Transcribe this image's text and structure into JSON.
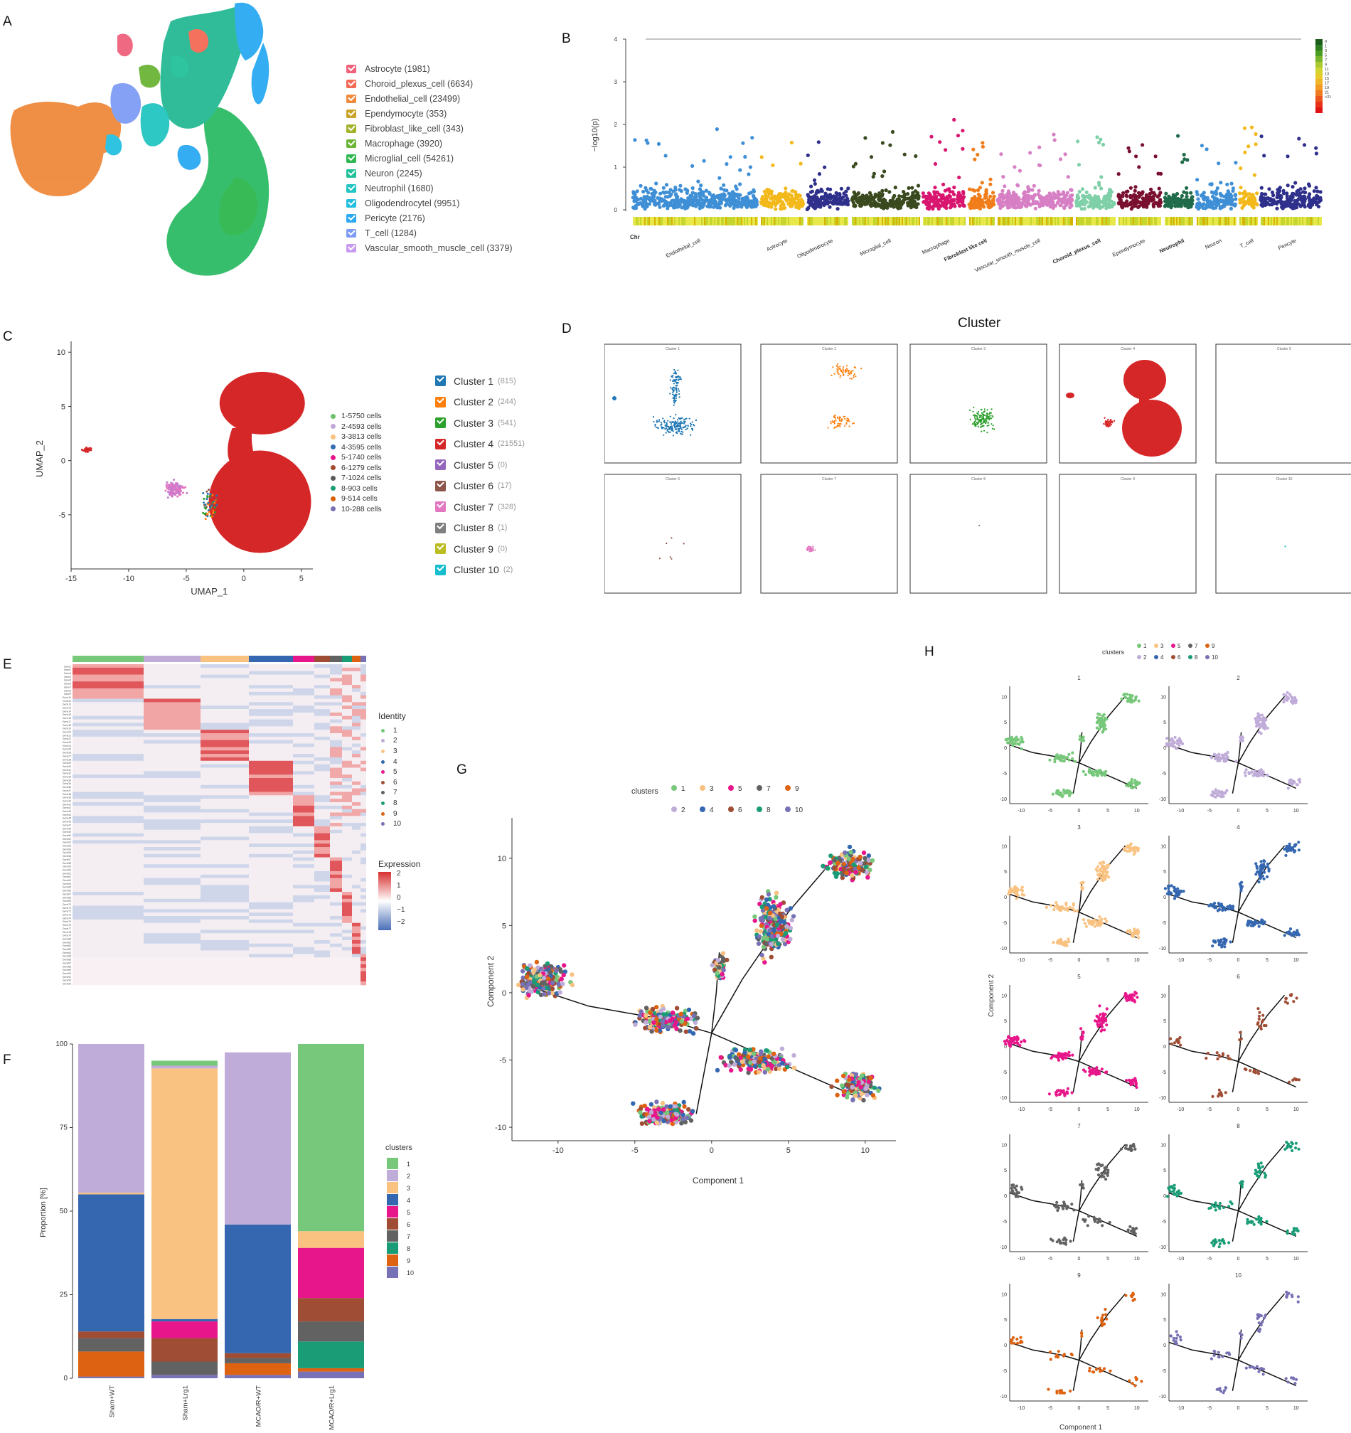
{
  "panel_labels": {
    "A": "A",
    "B": "B",
    "C": "C",
    "D": "D",
    "E": "E",
    "F": "F",
    "G": "G",
    "H": "H"
  },
  "panel_a": {
    "legend": [
      {
        "label": "Astrocyte (1981)",
        "color": "#f0627c"
      },
      {
        "label": "Choroid_plexus_cell (6634)",
        "color": "#f46a55"
      },
      {
        "label": "Endothelial_cell (23499)",
        "color": "#ef8a3c"
      },
      {
        "label": "Ependymocyte (353)",
        "color": "#c9a227"
      },
      {
        "label": "Fibroblast_like_cell (343)",
        "color": "#a4b32a"
      },
      {
        "label": "Macrophage (3920)",
        "color": "#6bb536"
      },
      {
        "label": "Microglial_cell (54261)",
        "color": "#2eb84f"
      },
      {
        "label": "Neuron (2245)",
        "color": "#22c19a"
      },
      {
        "label": "Neutrophil (1680)",
        "color": "#22c5c1"
      },
      {
        "label": "Oligodendrocytel (9951)",
        "color": "#24bfe0"
      },
      {
        "label": "Pericyte (2176)",
        "color": "#2ba9f2"
      },
      {
        "label": "T_cell (1284)",
        "color": "#7f9cf5"
      },
      {
        "label": "Vascular_smooth_muscle_cell (3379)",
        "color": "#c89bf0"
      }
    ]
  },
  "panel_b": {
    "ylabel": "−log10(p)",
    "yticks": [
      "0",
      "1",
      "2",
      "3",
      "4"
    ],
    "chr_label": "Chr",
    "cell_types": [
      {
        "label": "Endothelial_cell",
        "color": "#3f8fd6",
        "bold": false
      },
      {
        "label": "Astrocyte",
        "color": "#f3b81a",
        "bold": false
      },
      {
        "label": "Oligodendrocyte",
        "color": "#2f2f8c",
        "bold": false
      },
      {
        "label": "Microglial_cell",
        "color": "#3a4a1e",
        "bold": false
      },
      {
        "label": "Macrophage",
        "color": "#d8166f",
        "bold": false
      },
      {
        "label": "Fibroblast like cell",
        "color": "#f07d1a",
        "bold": true
      },
      {
        "label": "Vascular_smooth_muscle_cell",
        "color": "#d77fc4",
        "bold": false
      },
      {
        "label": "Choroid_plexus_cell",
        "color": "#7fd0a8",
        "bold": true
      },
      {
        "label": "Ependymocyte",
        "color": "#7a1030",
        "bold": false
      },
      {
        "label": "Neutrophil",
        "color": "#1f6b4a",
        "bold": true
      },
      {
        "label": "Neuron",
        "color": "#3f8fd6",
        "bold": false
      },
      {
        "label": "T_cell",
        "color": "#f3b81a",
        "bold": false
      },
      {
        "label": "Pericyte",
        "color": "#2f2f8c",
        "bold": false
      }
    ],
    "colorbar_ticks": [
      "0",
      "1",
      "3",
      "5",
      "7",
      "9",
      "11",
      "13",
      "15",
      "17",
      "19",
      "21",
      ">21"
    ]
  },
  "panel_c": {
    "xlabel": "UMAP_1",
    "ylabel": "UMAP_2",
    "xticks": [
      "-15",
      "-10",
      "-5",
      "0",
      "5"
    ],
    "yticks": [
      "10",
      "5",
      "0",
      "-5"
    ],
    "cell_legend": [
      {
        "label": "1-5750  cells",
        "color": "#6dbf6a"
      },
      {
        "label": "2-4593  cells",
        "color": "#c0a7d6"
      },
      {
        "label": "3-3813  cells",
        "color": "#f7c27f"
      },
      {
        "label": "4-3595  cells",
        "color": "#356bb2"
      },
      {
        "label": "5-1740  cells",
        "color": "#e5168c"
      },
      {
        "label": "6-1279  cells",
        "color": "#a14a2d"
      },
      {
        "label": "7-1024  cells",
        "color": "#5a5a5a"
      },
      {
        "label": "8-903  cells",
        "color": "#1b9e77"
      },
      {
        "label": "9-514  cells",
        "color": "#d95f02"
      },
      {
        "label": "10-288  cells",
        "color": "#7570b3"
      }
    ],
    "cluster_legend": [
      {
        "label": "Cluster 1",
        "count": "(815)",
        "color": "#1f77b4"
      },
      {
        "label": "Cluster 2",
        "count": "(244)",
        "color": "#ff7f0e"
      },
      {
        "label": "Cluster 3",
        "count": "(541)",
        "color": "#2ca02c"
      },
      {
        "label": "Cluster 4",
        "count": "(21551)",
        "color": "#d62728"
      },
      {
        "label": "Cluster 5",
        "count": "(0)",
        "color": "#9467bd"
      },
      {
        "label": "Cluster 6",
        "count": "(17)",
        "color": "#8c564b"
      },
      {
        "label": "Cluster 7",
        "count": "(328)",
        "color": "#e377c2"
      },
      {
        "label": "Cluster 8",
        "count": "(1)",
        "color": "#7f7f7f"
      },
      {
        "label": "Cluster 9",
        "count": "(0)",
        "color": "#bcbd22"
      },
      {
        "label": "Cluster 10",
        "count": "(2)",
        "color": "#17becf"
      }
    ]
  },
  "panel_d": {
    "title": "Cluster",
    "subtitles": [
      "Cluster 1",
      "Cluster 2",
      "Cluster 3",
      "Cluster 4",
      "Cluster 5",
      "Cluster 6",
      "Cluster 7",
      "Cluster 8",
      "Cluster 9",
      "Cluster 10"
    ]
  },
  "panel_e": {
    "identity_title": "Identity",
    "identities": [
      "1",
      "2",
      "3",
      "4",
      "5",
      "6",
      "7",
      "8",
      "9",
      "10"
    ],
    "expression_title": "Expression",
    "expression_ticks": [
      "2",
      "1",
      "0",
      "−1",
      "−2"
    ]
  },
  "panel_f": {
    "ylabel": "Proportion [%]",
    "yticks": [
      "0",
      "25",
      "50",
      "75",
      "100"
    ],
    "legend_title": "clusters",
    "categories": [
      "Sham+WT",
      "Sham+Lrg1",
      "MCAO/R+WT",
      "MCAO/R+Lrg1"
    ]
  },
  "panel_g": {
    "legend_title": "clusters",
    "xlabel": "Component 1",
    "ylabel": "Component 2",
    "xticks": [
      "-10",
      "-5",
      "0",
      "5",
      "10"
    ],
    "yticks": [
      "10",
      "5",
      "0",
      "-5",
      "-10"
    ]
  },
  "panel_h": {
    "legend_title": "clusters",
    "xlabel": "Component 1",
    "ylabel": "Component 2",
    "subplot_titles": [
      "1",
      "2",
      "3",
      "4",
      "5",
      "6",
      "7",
      "8",
      "9",
      "10"
    ],
    "xticks": [
      "-10",
      "-5",
      "0",
      "5",
      "10"
    ],
    "yticks": [
      "10",
      "5",
      "0",
      "-5",
      "-10"
    ]
  },
  "chart_data": [
    {
      "type": "bar",
      "title": "",
      "xlabel": "",
      "ylabel": "Proportion [%]",
      "ylim": [
        0,
        100
      ],
      "categories": [
        "Sham+WT",
        "Sham+Lrg1",
        "MCAO/R+WT",
        "MCAO/R+Lrg1"
      ],
      "series": [
        {
          "name": "1",
          "color": "#77c87a",
          "values": [
            0,
            1.5,
            0,
            56
          ]
        },
        {
          "name": "2",
          "color": "#c0acd8",
          "values": [
            44.5,
            0.8,
            51.5,
            0
          ]
        },
        {
          "name": "3",
          "color": "#f9c281",
          "values": [
            0.5,
            75,
            0,
            5
          ]
        },
        {
          "name": "4",
          "color": "#3467b0",
          "values": [
            41,
            0.7,
            38.5,
            0
          ]
        },
        {
          "name": "5",
          "color": "#e8168b",
          "values": [
            0,
            5,
            0,
            15
          ]
        },
        {
          "name": "6",
          "color": "#a04d35",
          "values": [
            2,
            7,
            1.5,
            7
          ]
        },
        {
          "name": "7",
          "color": "#626262",
          "values": [
            4,
            4,
            1.5,
            6
          ]
        },
        {
          "name": "8",
          "color": "#1a9d77",
          "values": [
            0,
            0,
            0,
            8
          ]
        },
        {
          "name": "9",
          "color": "#dd6312",
          "values": [
            7.5,
            0,
            3.5,
            1
          ]
        },
        {
          "name": "10",
          "color": "#7771b5",
          "values": [
            0.5,
            1,
            1,
            2
          ]
        }
      ]
    }
  ]
}
